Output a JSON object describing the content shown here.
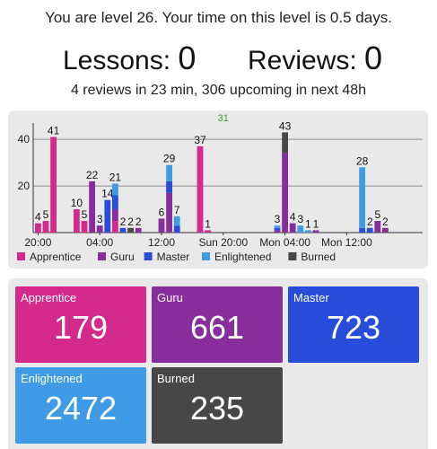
{
  "header": {
    "level_line": "You are level 26. Your time on this level is 0.5 days.",
    "lessons_label": "Lessons:",
    "lessons_value": "0",
    "reviews_label": "Reviews:",
    "reviews_value": "0",
    "upcoming": "4 reviews in 23 min, 306 upcoming in next 48h"
  },
  "colors": {
    "Apprentice": "#d42a8c",
    "Guru": "#882d9e",
    "Master": "#294ddb",
    "Enlightened": "#3f9be6",
    "Burned": "#474747"
  },
  "chart_data": {
    "type": "bar",
    "stacked": true,
    "ylim": [
      0,
      47
    ],
    "yticks": [
      20,
      40
    ],
    "grid": true,
    "legend_position": "bottom",
    "x_tick_labels": [
      "20:00",
      "04:00",
      "12:00",
      "Sun 20:00",
      "Mon 04:00",
      "Mon 12:00"
    ],
    "x_tick_slots": [
      0,
      8,
      16,
      24,
      32,
      40
    ],
    "top_label": "31",
    "series": [
      {
        "name": "Apprentice"
      },
      {
        "name": "Guru"
      },
      {
        "name": "Master"
      },
      {
        "name": "Enlightened"
      },
      {
        "name": "Burned"
      }
    ],
    "bars": [
      {
        "slot": 0,
        "total": 4,
        "Apprentice": 4
      },
      {
        "slot": 1,
        "total": 5,
        "Apprentice": 5
      },
      {
        "slot": 2,
        "total": 41,
        "Apprentice": 41
      },
      {
        "slot": 5,
        "total": 10,
        "Apprentice": 10
      },
      {
        "slot": 6,
        "total": 5,
        "Apprentice": 5
      },
      {
        "slot": 7,
        "total": 22,
        "Guru": 22
      },
      {
        "slot": 8,
        "total": 3,
        "Guru": 3
      },
      {
        "slot": 9,
        "total": 14,
        "Master": 14
      },
      {
        "slot": 10,
        "total": 21,
        "Apprentice": 5,
        "Guru": 5,
        "Master": 6,
        "Enlightened": 5
      },
      {
        "slot": 11,
        "total": 2,
        "Master": 2
      },
      {
        "slot": 12,
        "total": 2,
        "Burned": 2
      },
      {
        "slot": 13,
        "total": 2,
        "Guru": 2
      },
      {
        "slot": 16,
        "total": 6,
        "Guru": 6
      },
      {
        "slot": 17,
        "total": 29,
        "Guru": 17,
        "Master": 5,
        "Enlightened": 7
      },
      {
        "slot": 18,
        "total": 7,
        "Master": 3,
        "Enlightened": 4
      },
      {
        "slot": 21,
        "total": 37,
        "Apprentice": 37
      },
      {
        "slot": 22,
        "total": 1,
        "Apprentice": 1
      },
      {
        "slot": 31,
        "total": 3,
        "Guru": 1,
        "Master": 1,
        "Enlightened": 1
      },
      {
        "slot": 32,
        "total": 43,
        "Guru": 34,
        "Burned": 9
      },
      {
        "slot": 33,
        "total": 4,
        "Guru": 4
      },
      {
        "slot": 34,
        "total": 3,
        "Enlightened": 3
      },
      {
        "slot": 35,
        "total": 1,
        "Enlightened": 1
      },
      {
        "slot": 36,
        "total": 1,
        "Guru": 1
      },
      {
        "slot": 42,
        "total": 28,
        "Master": 2,
        "Enlightened": 26
      },
      {
        "slot": 43,
        "total": 2,
        "Master": 2
      },
      {
        "slot": 44,
        "total": 5,
        "Guru": 5
      },
      {
        "slot": 45,
        "total": 2,
        "Guru": 2
      }
    ]
  },
  "stages": [
    {
      "label": "Apprentice",
      "value": "179"
    },
    {
      "label": "Guru",
      "value": "661"
    },
    {
      "label": "Master",
      "value": "723"
    },
    {
      "label": "Enlightened",
      "value": "2472"
    },
    {
      "label": "Burned",
      "value": "235"
    }
  ]
}
